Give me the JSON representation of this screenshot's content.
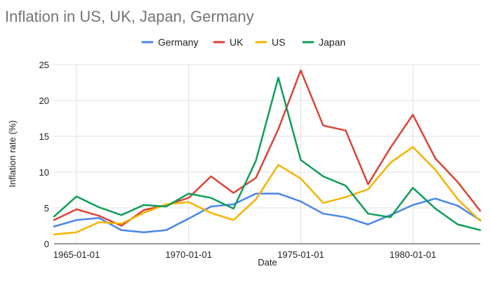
{
  "chart_data": {
    "type": "line",
    "title": "Inflation in US, UK, Japan, Germany",
    "xlabel": "Date",
    "ylabel": "Inflation rate (%)",
    "ylim": [
      0,
      25
    ],
    "yticks": [
      0,
      5,
      10,
      15,
      20,
      25
    ],
    "xlim": [
      "1964-01-01",
      "1983-01-01"
    ],
    "xticks": [
      "1965-01-01",
      "1970-01-01",
      "1975-01-01",
      "1980-01-01"
    ],
    "grid": true,
    "legend_position": "top",
    "x": [
      "1964-01-01",
      "1965-01-01",
      "1966-01-01",
      "1967-01-01",
      "1968-01-01",
      "1969-01-01",
      "1970-01-01",
      "1971-01-01",
      "1972-01-01",
      "1973-01-01",
      "1974-01-01",
      "1975-01-01",
      "1976-01-01",
      "1977-01-01",
      "1978-01-01",
      "1979-01-01",
      "1980-01-01",
      "1981-01-01",
      "1982-01-01",
      "1983-01-01"
    ],
    "series": [
      {
        "name": "Germany",
        "color": "#4a86e8",
        "values": [
          2.4,
          3.3,
          3.6,
          1.9,
          1.6,
          1.9,
          3.5,
          5.2,
          5.5,
          7.0,
          7.0,
          5.9,
          4.2,
          3.7,
          2.7,
          4.0,
          5.4,
          6.3,
          5.3,
          3.3
        ]
      },
      {
        "name": "UK",
        "color": "#db4437",
        "values": [
          3.3,
          4.8,
          3.9,
          2.5,
          4.7,
          5.4,
          6.4,
          9.4,
          7.1,
          9.2,
          16.0,
          24.2,
          16.5,
          15.8,
          8.3,
          13.4,
          18.0,
          11.9,
          8.6,
          4.6
        ]
      },
      {
        "name": "US",
        "color": "#f4b400",
        "values": [
          1.3,
          1.6,
          3.0,
          2.8,
          4.3,
          5.5,
          5.8,
          4.3,
          3.3,
          6.2,
          11.0,
          9.1,
          5.7,
          6.5,
          7.6,
          11.3,
          13.5,
          10.3,
          6.2,
          3.2
        ]
      },
      {
        "name": "Japan",
        "color": "#0f9d58",
        "values": [
          3.8,
          6.6,
          5.1,
          4.0,
          5.4,
          5.2,
          7.0,
          6.4,
          4.9,
          11.6,
          23.2,
          11.7,
          9.4,
          8.1,
          4.2,
          3.7,
          7.8,
          4.9,
          2.7,
          1.9
        ]
      }
    ]
  }
}
